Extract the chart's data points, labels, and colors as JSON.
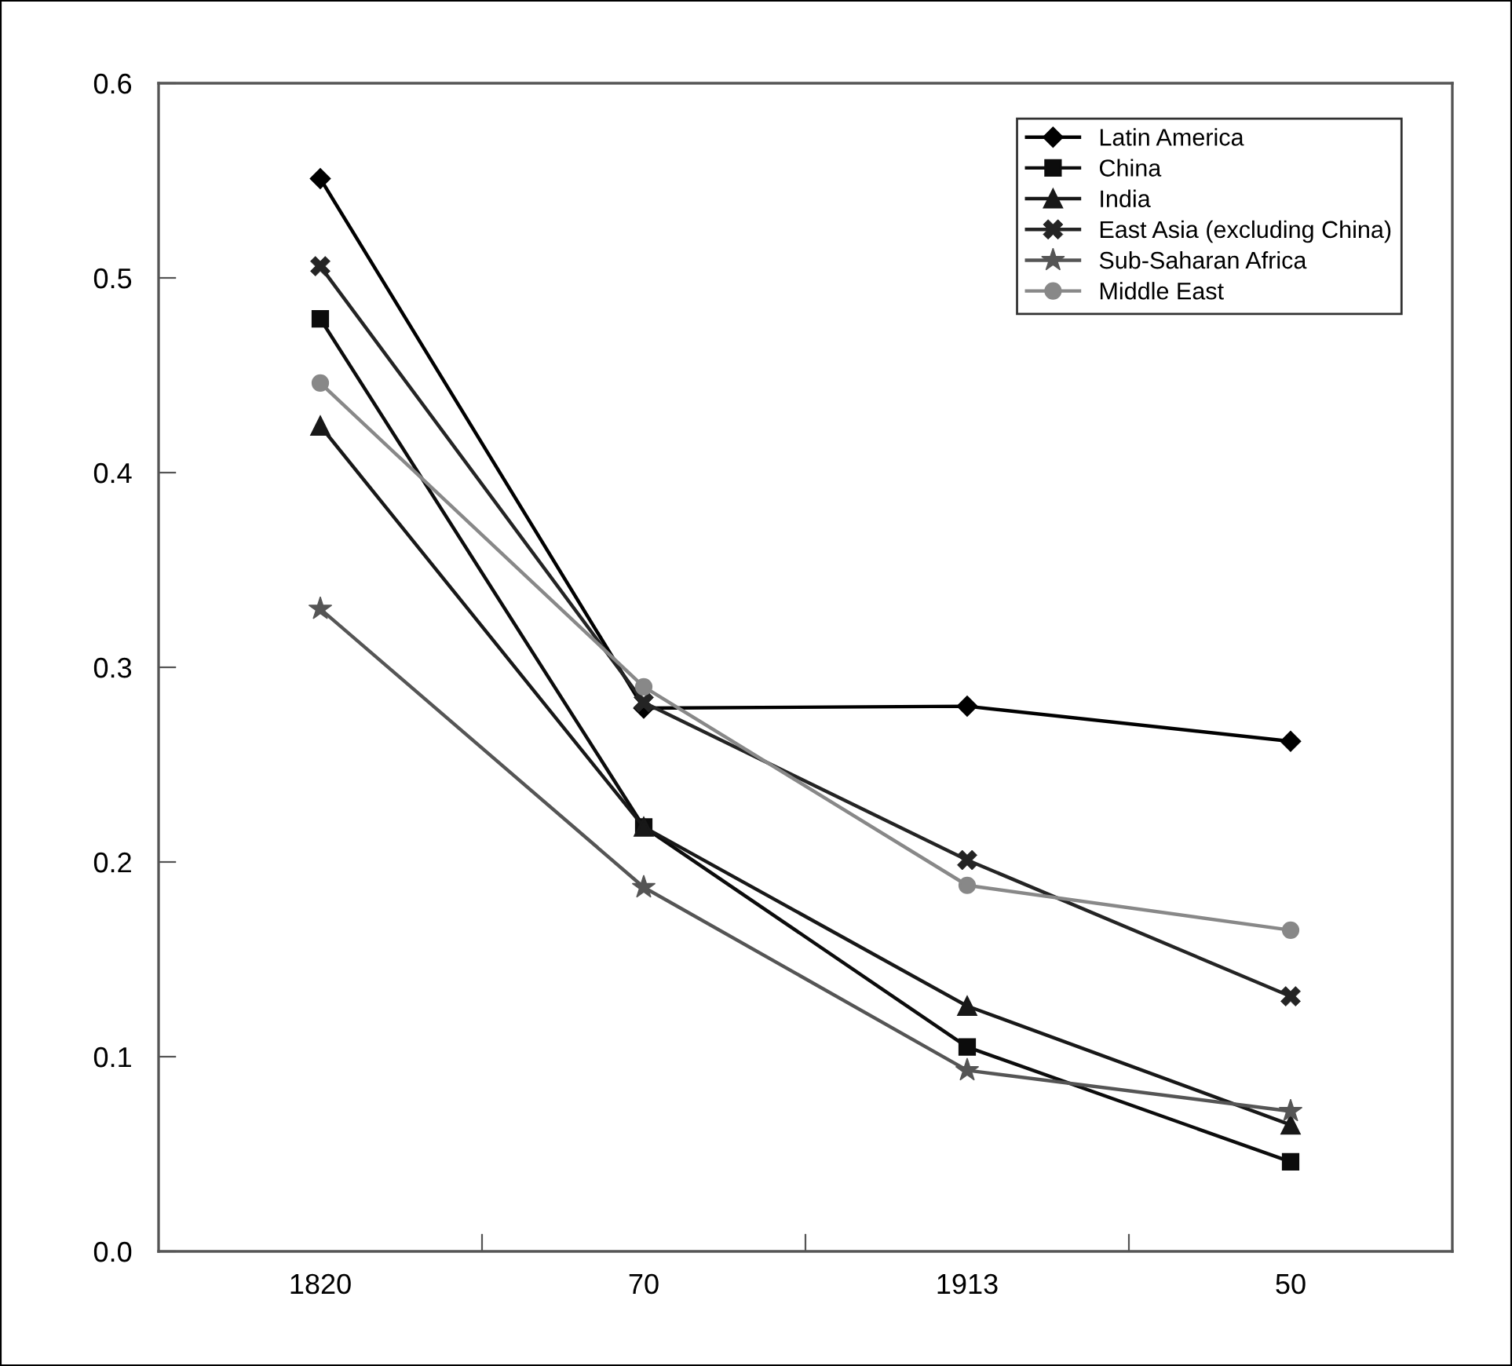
{
  "chart_data": {
    "type": "line",
    "categories": [
      "1820",
      "70",
      "1913",
      "50"
    ],
    "ylim": [
      0,
      0.6
    ],
    "yticks": [
      {
        "value": 0,
        "label": "0.0"
      },
      0.1,
      0.2,
      0.3,
      0.4,
      0.5,
      0.6
    ],
    "legend": "top right",
    "grid": false,
    "line_style": "solid",
    "series": [
      {
        "name": "Latin America",
        "color": "#000000",
        "marker": "diamond",
        "values": [
          0.551,
          0.279,
          0.28,
          0.262
        ]
      },
      {
        "name": "China",
        "color": "#0c0c0c",
        "marker": "square",
        "values": [
          0.479,
          0.218,
          0.105,
          0.046
        ]
      },
      {
        "name": "India",
        "color": "#181818",
        "marker": "triangle",
        "values": [
          0.424,
          0.218,
          0.126,
          0.065
        ]
      },
      {
        "name": "East Asia (excluding China)",
        "color": "#242424",
        "marker": "cross",
        "values": [
          0.506,
          0.282,
          0.201,
          0.131
        ]
      },
      {
        "name": "Sub-Saharan Africa",
        "color": "#555555",
        "marker": "star",
        "values": [
          0.33,
          0.187,
          0.093,
          0.072
        ]
      },
      {
        "name": "Middle East",
        "color": "#888888",
        "marker": "circle",
        "values": [
          0.446,
          0.29,
          0.188,
          0.165
        ]
      }
    ]
  }
}
